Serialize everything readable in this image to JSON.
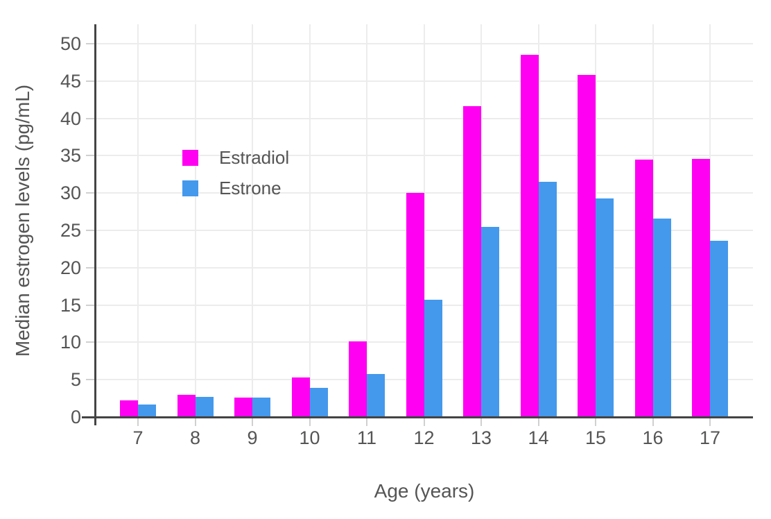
{
  "chart_data": {
    "type": "bar",
    "title": "",
    "xlabel": "Age (years)",
    "ylabel": "Median estrogen levels (pg/mL)",
    "categories": [
      "7",
      "8",
      "9",
      "10",
      "11",
      "12",
      "13",
      "14",
      "15",
      "16",
      "17"
    ],
    "series": [
      {
        "name": "Estradiol",
        "color": "#ff00f2",
        "values": [
          2.2,
          3.0,
          2.6,
          5.3,
          10.1,
          30.0,
          41.6,
          48.5,
          45.8,
          34.5,
          34.6
        ]
      },
      {
        "name": "Estrone",
        "color": "#4499ec",
        "values": [
          1.7,
          2.7,
          2.6,
          3.9,
          5.8,
          15.7,
          25.5,
          31.5,
          29.3,
          26.6,
          23.6
        ]
      }
    ],
    "ylim": [
      0,
      52.6
    ],
    "yticks": [
      0,
      5,
      10,
      15,
      20,
      25,
      30,
      35,
      40,
      45,
      50
    ],
    "grid": true,
    "legend_position": "inside-upper-left"
  },
  "colors": {
    "background": "#ffffff",
    "axis_line": "#444444",
    "grid_line": "#ececec",
    "tick_mark": "#d0d0d0",
    "text": "#555555"
  }
}
